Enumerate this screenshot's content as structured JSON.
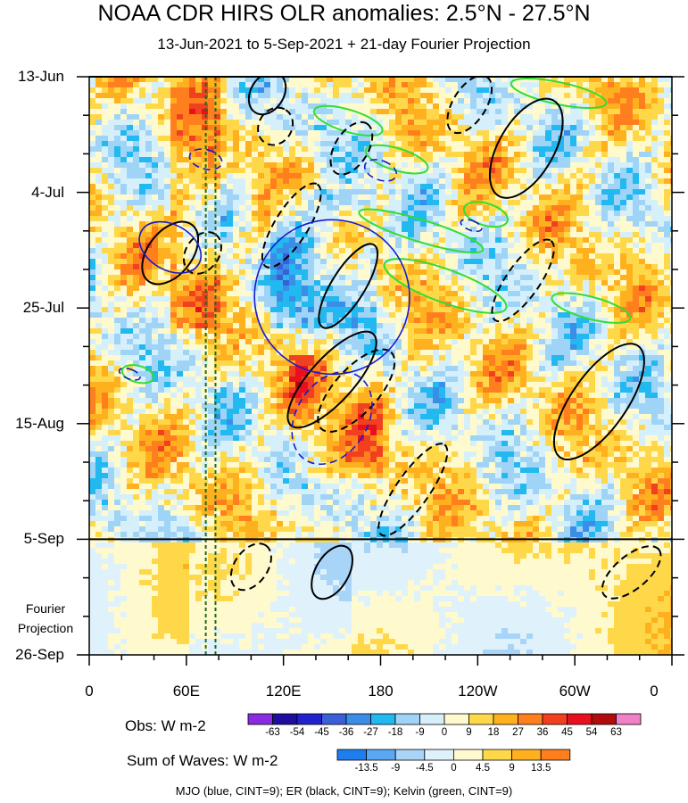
{
  "chart_data": {
    "type": "heatmap",
    "title": "NOAA CDR HIRS OLR anomalies: 2.5°N - 27.5°N",
    "subtitle": "13-Jun-2021 to 5-Sep-2021 + 21-day Fourier Projection",
    "x_ticks": [
      "0",
      "60E",
      "120E",
      "180",
      "120W",
      "60W",
      "0"
    ],
    "x_tick_lon": [
      0,
      60,
      120,
      180,
      240,
      300,
      360
    ],
    "y_ticks": [
      "13-Jun",
      "4-Jul",
      "25-Jul",
      "15-Aug",
      "5-Sep",
      "26-Sep"
    ],
    "y_tick_day": [
      0,
      21,
      42,
      63,
      84,
      105
    ],
    "observation_end_day": 84,
    "projection_label": "Fourier Projection",
    "marker_lines_lon": [
      72,
      78
    ],
    "obs_colorbar": {
      "label": "Obs: W m-2",
      "ticks": [
        "-63",
        "-54",
        "-45",
        "-36",
        "-27",
        "-18",
        "-9",
        "0",
        "9",
        "18",
        "27",
        "36",
        "45",
        "54",
        "63"
      ],
      "colors": [
        "#8a2be2",
        "#1e0e9e",
        "#2222cc",
        "#3b5fd6",
        "#3b8ee8",
        "#22b8f0",
        "#9fd4f7",
        "#d6f0fb",
        "#fffacd",
        "#ffd84a",
        "#ffb01e",
        "#ff7f1e",
        "#f04020",
        "#e8101e",
        "#b00c0c",
        "#f080c8"
      ]
    },
    "waves_colorbar": {
      "label": "Sum of Waves: W m-2",
      "ticks": [
        "-13.5",
        "-9",
        "-4.5",
        "0",
        "4.5",
        "9",
        "13.5"
      ],
      "colors": [
        "#1e7ef0",
        "#5aa8f2",
        "#a8d4f8",
        "#dff2fc",
        "#fffacd",
        "#ffd84a",
        "#ffb01e",
        "#ff7f1e"
      ]
    },
    "contour_legend": "MJO (blue, CINT=9); ER (black, CINT=9); Kelvin (green, CINT=9)",
    "contour_colors": {
      "mjo": "#1a1acc",
      "er": "#000000",
      "kelvin": "#33dd33"
    },
    "mjo_contours": [
      {
        "lon": 50,
        "day": 31,
        "rx": 14,
        "ry": 6,
        "rot": -60,
        "dashed": false
      },
      {
        "lon": 150,
        "day": 40,
        "rx": 48,
        "ry": 14,
        "rot": 30,
        "dashed": false
      },
      {
        "lon": 150,
        "day": 62,
        "rx": 22,
        "ry": 9,
        "rot": 32,
        "dashed": true
      },
      {
        "lon": 72,
        "day": 15,
        "rx": 6,
        "ry": 3,
        "rot": -75,
        "dashed": true
      },
      {
        "lon": 180,
        "day": 17,
        "rx": 6,
        "ry": 3,
        "rot": -70,
        "dashed": true
      },
      {
        "lon": 25,
        "day": 54,
        "rx": 3,
        "ry": 2,
        "rot": -70,
        "dashed": true
      },
      {
        "lon": 236,
        "day": 27,
        "rx": 3,
        "ry": 2,
        "rot": -70,
        "dashed": true
      }
    ],
    "er_contours": [
      {
        "lon": 50,
        "day": 32,
        "rx": 22,
        "ry": 4,
        "rot": -52,
        "dashed": false
      },
      {
        "lon": 70,
        "day": 32,
        "rx": 14,
        "ry": 3,
        "rot": -55,
        "dashed": true
      },
      {
        "lon": 110,
        "day": 3,
        "rx": 14,
        "ry": 3,
        "rot": -58,
        "dashed": false
      },
      {
        "lon": 115,
        "day": 9,
        "rx": 12,
        "ry": 3,
        "rot": -58,
        "dashed": true
      },
      {
        "lon": 162,
        "day": 13,
        "rx": 18,
        "ry": 3,
        "rot": -58,
        "dashed": true
      },
      {
        "lon": 125,
        "day": 27,
        "rx": 30,
        "ry": 3,
        "rot": -58,
        "dashed": true
      },
      {
        "lon": 160,
        "day": 38,
        "rx": 30,
        "ry": 3,
        "rot": -58,
        "dashed": false
      },
      {
        "lon": 150,
        "day": 55,
        "rx": 38,
        "ry": 4,
        "rot": -48,
        "dashed": false
      },
      {
        "lon": 165,
        "day": 57,
        "rx": 32,
        "ry": 4,
        "rot": -48,
        "dashed": true
      },
      {
        "lon": 235,
        "day": 5,
        "rx": 20,
        "ry": 3,
        "rot": -58,
        "dashed": true
      },
      {
        "lon": 270,
        "day": 13,
        "rx": 34,
        "ry": 5,
        "rot": -60,
        "dashed": false
      },
      {
        "lon": 268,
        "day": 37,
        "rx": 30,
        "ry": 3,
        "rot": -55,
        "dashed": true
      },
      {
        "lon": 315,
        "day": 59,
        "rx": 42,
        "ry": 5,
        "rot": -55,
        "dashed": false
      },
      {
        "lon": 200,
        "day": 75,
        "rx": 34,
        "ry": 3,
        "rot": -55,
        "dashed": true
      },
      {
        "lon": 335,
        "day": 90,
        "rx": 22,
        "ry": 3,
        "rot": -40,
        "dashed": true
      },
      {
        "lon": 150,
        "day": 90,
        "rx": 18,
        "ry": 3,
        "rot": -60,
        "dashed": false
      },
      {
        "lon": 100,
        "day": 89,
        "rx": 16,
        "ry": 3,
        "rot": -55,
        "dashed": true
      }
    ],
    "kelvin_contours": [
      {
        "lon": 220,
        "day": 38,
        "rx": 40,
        "ry": 3,
        "rot": 20,
        "dashed": false
      },
      {
        "lon": 205,
        "day": 28,
        "rx": 40,
        "ry": 2,
        "rot": 17,
        "dashed": false
      },
      {
        "lon": 160,
        "day": 8,
        "rx": 22,
        "ry": 2,
        "rot": 17,
        "dashed": false
      },
      {
        "lon": 190,
        "day": 15,
        "rx": 20,
        "ry": 2,
        "rot": 17,
        "dashed": false
      },
      {
        "lon": 245,
        "day": 25,
        "rx": 14,
        "ry": 2,
        "rot": 17,
        "dashed": false
      },
      {
        "lon": 310,
        "day": 42,
        "rx": 25,
        "ry": 2,
        "rot": 15,
        "dashed": false
      },
      {
        "lon": 290,
        "day": 3,
        "rx": 30,
        "ry": 2,
        "rot": 12,
        "dashed": false
      },
      {
        "lon": 30,
        "day": 54,
        "rx": 10,
        "ry": 1.5,
        "rot": 15,
        "dashed": false
      }
    ]
  }
}
